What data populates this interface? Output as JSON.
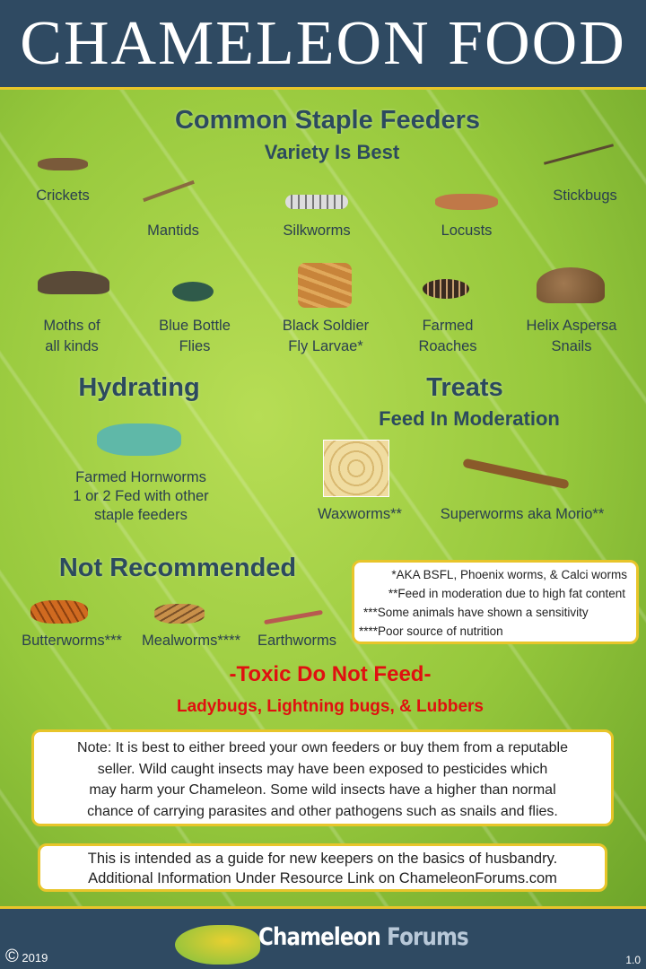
{
  "title": "Chameleon Food",
  "staple": {
    "heading": "Common Staple Feeders",
    "subheading": "Variety Is Best",
    "items": [
      {
        "label": "Crickets"
      },
      {
        "label": "Mantids"
      },
      {
        "label": "Silkworms"
      },
      {
        "label": "Locusts"
      },
      {
        "label": "Stickbugs"
      },
      {
        "label": "Moths of",
        "label2": "all kinds"
      },
      {
        "label": "Blue Bottle",
        "label2": "Flies"
      },
      {
        "label": "Black Soldier",
        "label2": "Fly Larvae*"
      },
      {
        "label": "Farmed",
        "label2": "Roaches"
      },
      {
        "label": "Helix Aspersa",
        "label2": "Snails"
      }
    ]
  },
  "hydrating": {
    "heading": "Hydrating",
    "lines": [
      "Farmed Hornworms",
      "1 or 2 Fed with other",
      "staple feeders"
    ]
  },
  "treats": {
    "heading": "Treats",
    "subheading": "Feed In Moderation",
    "items": [
      {
        "label": "Waxworms**"
      },
      {
        "label": "Superworms aka Morio**"
      }
    ]
  },
  "not_recommended": {
    "heading": "Not Recommended",
    "items": [
      {
        "label": "Butterworms***"
      },
      {
        "label": "Mealworms****"
      },
      {
        "label": "Earthworms"
      }
    ]
  },
  "footnotes": [
    "*AKA BSFL, Phoenix worms, & Calci worms",
    "**Feed in moderation due to high fat content",
    "***Some animals have shown a sensitivity",
    "****Poor source of nutrition"
  ],
  "toxic": {
    "heading": "-Toxic Do Not Feed-",
    "list": "Ladybugs, Lightning bugs, & Lubbers"
  },
  "note": [
    "Note: It is best to either breed your own feeders or buy them from a reputable",
    "seller. Wild caught insects may have been exposed to pesticides which",
    "may harm your Chameleon. Some wild insects have a higher than normal",
    "chance of carrying parasites and other pathogens such as snails and flies."
  ],
  "guide": [
    "This is intended as a guide for new keepers on the basics of husbandry.",
    "Additional Information Under Resource Link on ChameleonForums.com"
  ],
  "footer": {
    "copyright": "©",
    "year": "2019",
    "logo_word1": "Chameleon",
    "logo_word2": "Forums",
    "version": "1.0"
  },
  "colors": {
    "header": "#2f4a62",
    "heading": "#2c4a5e",
    "toxic": "#e01010",
    "border": "#e8c52a"
  }
}
